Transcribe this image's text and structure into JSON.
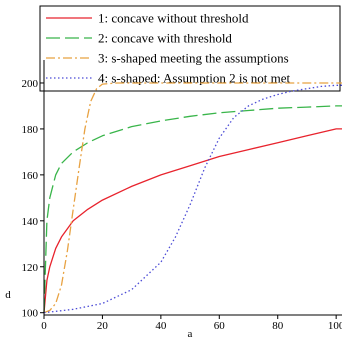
{
  "chart_data": {
    "type": "line",
    "xlabel": "a",
    "ylabel": "d",
    "xlim": [
      0,
      102
    ],
    "ylim": [
      99,
      210
    ],
    "x_ticks": [
      0,
      20,
      40,
      60,
      80,
      100
    ],
    "y_ticks": [
      100,
      120,
      140,
      160,
      180,
      200
    ],
    "grid": false,
    "legend_placement": "top",
    "series": [
      {
        "name": "1: concave without threshold",
        "color": "#e8232d",
        "dash": "solid",
        "x": [
          0,
          1,
          2,
          4,
          6,
          10,
          15,
          20,
          30,
          40,
          50,
          60,
          70,
          80,
          90,
          100,
          102
        ],
        "y": [
          100,
          114,
          120,
          128,
          133,
          140,
          145,
          149,
          155,
          160,
          164,
          168,
          171,
          174,
          177,
          180,
          180
        ]
      },
      {
        "name": "2: concave with threshold",
        "color": "#39b54a",
        "dash": "long-dash",
        "x": [
          0,
          1,
          2,
          4,
          6,
          10,
          15,
          20,
          30,
          40,
          50,
          60,
          70,
          80,
          90,
          100,
          102
        ],
        "y": [
          100,
          140,
          150,
          160,
          165,
          170,
          174,
          177,
          181,
          183.5,
          185.5,
          187,
          188,
          189,
          189.5,
          190,
          190
        ]
      },
      {
        "name": "3: s-shaped meeting the assumptions",
        "color": "#e8a242",
        "dash": "dash-dot",
        "x": [
          0,
          2,
          4,
          6,
          8,
          10,
          12,
          14,
          16,
          18,
          20,
          25,
          40,
          60,
          80,
          100,
          102
        ],
        "y": [
          100,
          101,
          104,
          112,
          127,
          145,
          163,
          180,
          192,
          197.5,
          199.5,
          200,
          200,
          200,
          200,
          200,
          200
        ]
      },
      {
        "name": "4: s-shaped: Assumption 2 is not met",
        "color": "#4b4bd6",
        "dash": "dotted",
        "x": [
          0,
          10,
          20,
          30,
          40,
          45,
          50,
          55,
          60,
          65,
          70,
          75,
          80,
          85,
          90,
          95,
          100,
          102
        ],
        "y": [
          100,
          101.5,
          104,
          110,
          122,
          133,
          147,
          163,
          176,
          185,
          190,
          193,
          195,
          196.5,
          197.5,
          198.5,
          199,
          199
        ]
      }
    ]
  }
}
